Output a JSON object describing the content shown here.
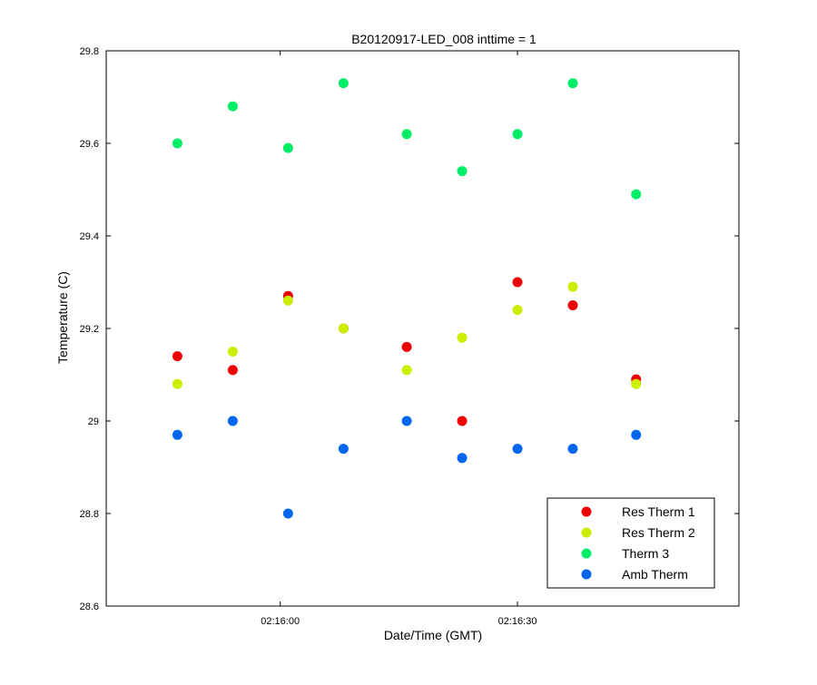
{
  "chart_data": {
    "type": "scatter",
    "title": "B20120917-LED_008 inttime = 1",
    "xlabel": "Date/Time (GMT)",
    "ylabel": "Temperature (C)",
    "xlim": [
      "02:15:38",
      "02:16:58"
    ],
    "ylim": [
      28.6,
      29.8
    ],
    "y_ticks": [
      28.6,
      28.8,
      29,
      29.2,
      29.4,
      29.6,
      29.8
    ],
    "y_tick_labels": [
      "28.6",
      "28.8",
      "29",
      "29.2",
      "29.4",
      "29.6",
      "29.8"
    ],
    "x_ticks": [
      "02:16:00",
      "02:16:30"
    ],
    "x_tick_labels": [
      "02:16:00",
      "02:16:30"
    ],
    "grid": false,
    "legend_position": "bottom-right",
    "x": [
      "02:15:47",
      "02:15:54",
      "02:16:01",
      "02:16:08",
      "02:16:16",
      "02:16:23",
      "02:16:30",
      "02:16:37",
      "02:16:45"
    ],
    "series": [
      {
        "name": "Res Therm 1",
        "color": "#ee0000",
        "values": [
          29.14,
          29.11,
          29.27,
          29.2,
          29.16,
          29.0,
          29.3,
          29.25,
          29.09
        ]
      },
      {
        "name": "Res Therm 2",
        "color": "#ccee00",
        "values": [
          29.08,
          29.15,
          29.26,
          29.2,
          29.11,
          29.18,
          29.24,
          29.29,
          29.08
        ]
      },
      {
        "name": "Therm 3",
        "color": "#00ee66",
        "values": [
          29.6,
          29.68,
          29.59,
          29.73,
          29.62,
          29.54,
          29.62,
          29.73,
          29.49
        ]
      },
      {
        "name": "Amb Therm",
        "color": "#0066ee",
        "values": [
          28.97,
          29.0,
          28.8,
          28.94,
          29.0,
          28.92,
          28.94,
          28.94,
          28.97
        ]
      }
    ]
  }
}
